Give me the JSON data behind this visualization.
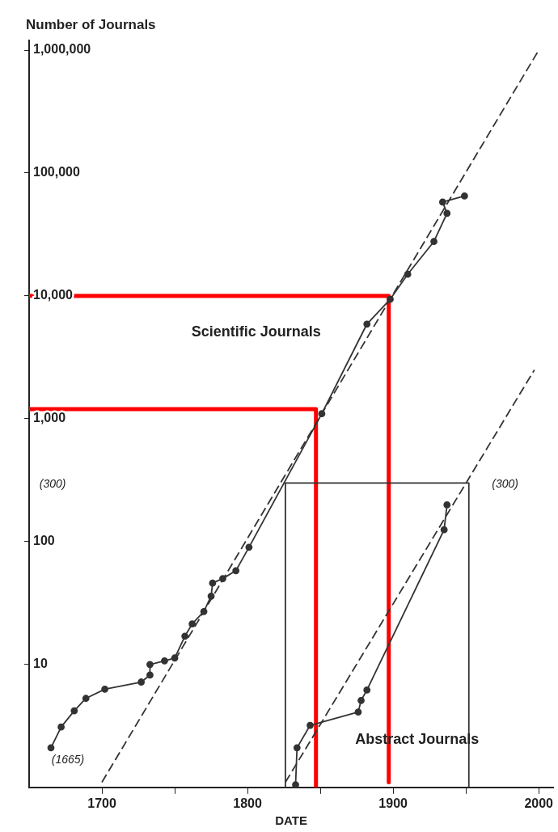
{
  "chart_data": {
    "type": "line",
    "ylabel": "Number of Journals",
    "xlabel": "DATE",
    "log": "y",
    "grid": false,
    "legend": false,
    "marker": "circle",
    "line_style": "solid",
    "xlim": [
      1650,
      2010
    ],
    "xticks": [
      1700,
      {
        "value": 1750,
        "label": null
      },
      1800,
      {
        "value": 1850,
        "label": null
      },
      1900,
      {
        "value": 1950,
        "label": null
      },
      2000
    ],
    "ylim": [
      1,
      1200000
    ],
    "yticks": [
      {
        "value": 10,
        "label": "10"
      },
      {
        "value": 100,
        "label": "100"
      },
      {
        "value": 1000,
        "label": "1,000"
      },
      {
        "value": 10000,
        "label": "10,000"
      },
      {
        "value": 100000,
        "label": "100,000"
      },
      {
        "value": 1000000,
        "label": "1,000,000"
      }
    ],
    "series": [
      {
        "color": "#333333",
        "x": [
          1665,
          1672,
          1681,
          1689,
          1702,
          1727,
          1733,
          1733,
          1743,
          1750,
          1757,
          1762,
          1770,
          1775,
          1776,
          1783,
          1792,
          1801,
          1851,
          1882,
          1898,
          1910,
          1928,
          1937,
          1934,
          1949
        ],
        "values": [
          2.1,
          3.1,
          4.2,
          5.3,
          6.3,
          7.2,
          8.2,
          10,
          10.7,
          11.3,
          17,
          21.4,
          27,
          36,
          46,
          50,
          58,
          90,
          1100,
          5900,
          9400,
          15000,
          27700,
          47000,
          58000,
          65000
        ]
      },
      {
        "color": "#333333",
        "x": [
          1833,
          1834,
          1843,
          1876,
          1878,
          1882,
          1935,
          1937
        ],
        "values": [
          1.05,
          2.1,
          3.2,
          4.1,
          5.1,
          6.2,
          125,
          199
        ]
      },
      {
        "color": "#333333",
        "marker": "none",
        "line_style": "dashed",
        "x": [
          1700,
          2000
        ],
        "values": [
          1.1,
          1000000
        ]
      },
      {
        "color": "#333333",
        "marker": "none",
        "line_style": "dashed",
        "x": [
          1826,
          1997
        ],
        "values": [
          1.1,
          2500
        ]
      },
      {
        "color": "#333333",
        "marker": "none",
        "x": [
          1826,
          1826,
          1952,
          1952
        ],
        "values": [
          1,
          300,
          300,
          1
        ]
      },
      {
        "color": "#ff0000",
        "marker": "none",
        "x": [
          1650,
          1897,
          1897
        ],
        "values": [
          10000,
          10000,
          1.1
        ]
      },
      {
        "color": "#ff0000",
        "marker": "none",
        "x": [
          1650,
          1847,
          1847
        ],
        "values": [
          1200,
          1200,
          1
        ]
      }
    ],
    "annotations": [
      "Scientific Journals",
      "Abstract Journals",
      "(1665)",
      "(300)",
      "(300)"
    ]
  }
}
